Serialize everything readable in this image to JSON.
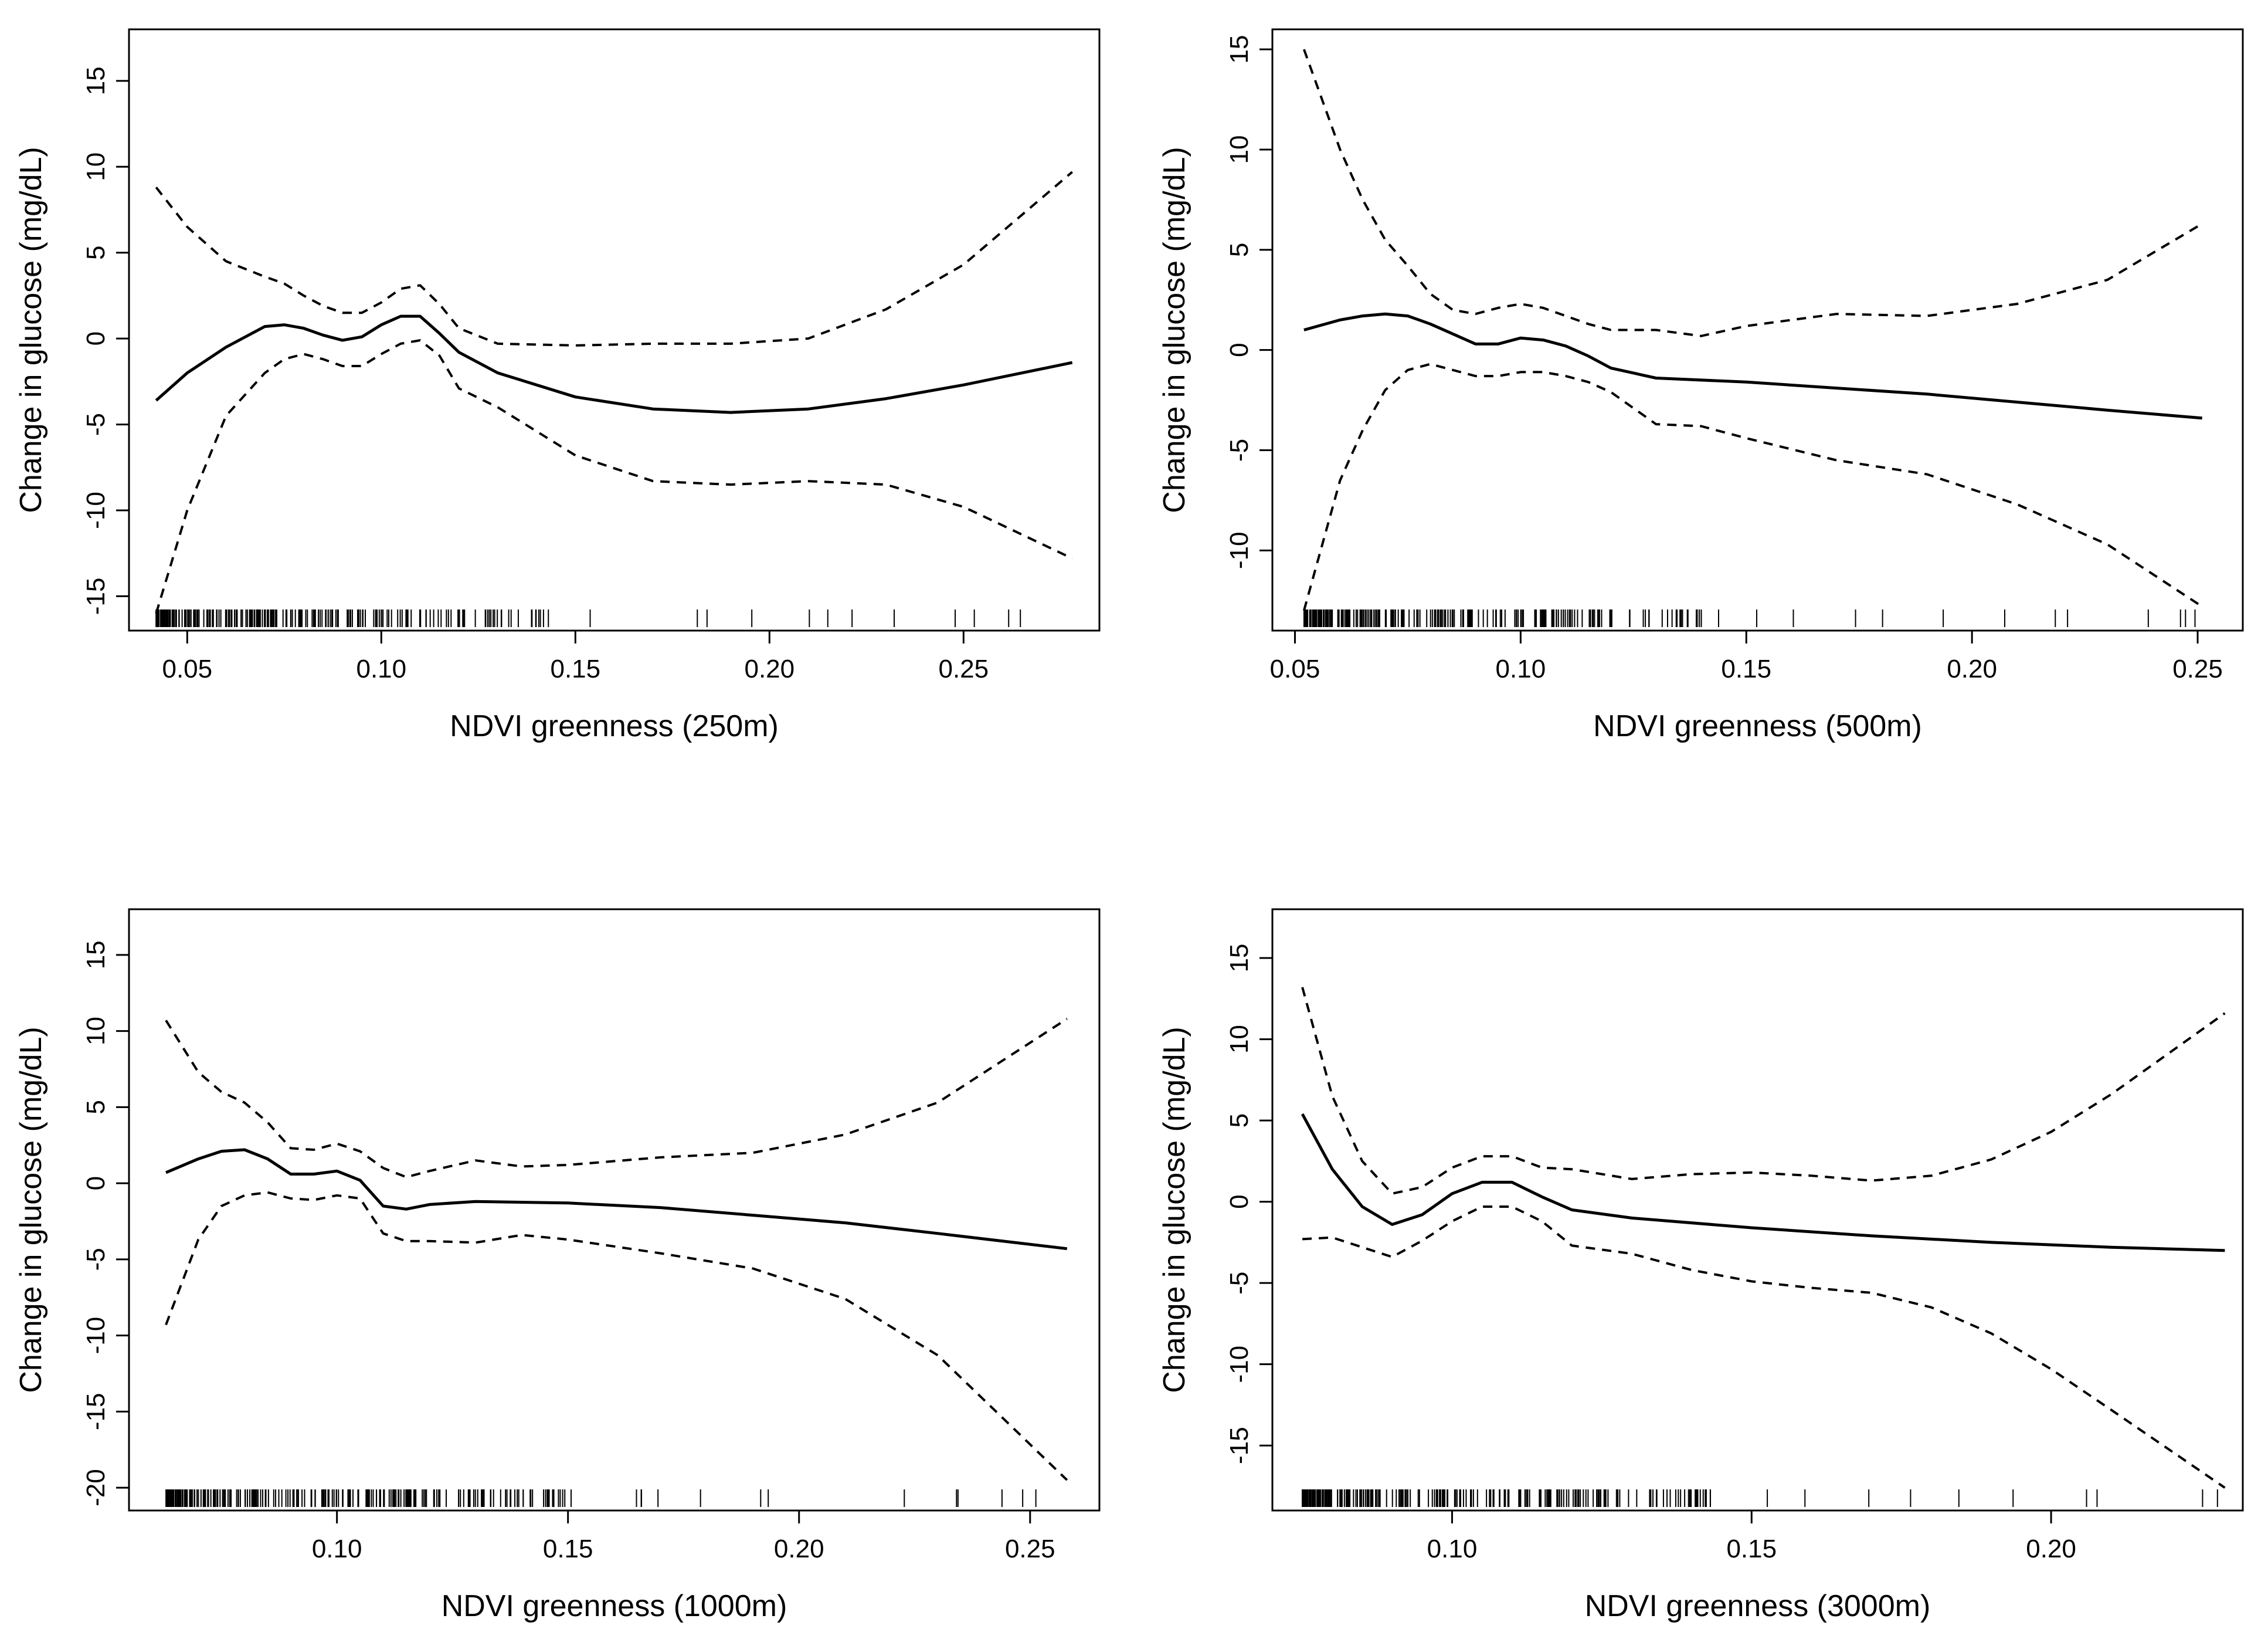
{
  "chart_data": [
    {
      "type": "line",
      "xlabel": "NDVI greenness (250m)",
      "ylabel": "Change in glucose (mg/dL)",
      "xlim": [
        0.035,
        0.285
      ],
      "ylim": [
        -17,
        18
      ],
      "xticks": [
        "0.05",
        "0.10",
        "0.15",
        "0.20",
        "0.25"
      ],
      "yticks": [
        "-15",
        "-10",
        "-5",
        "0",
        "5",
        "10",
        "15"
      ],
      "series": [
        {
          "style": "solid",
          "x": [
            0.042,
            0.05,
            0.06,
            0.07,
            0.075,
            0.08,
            0.085,
            0.09,
            0.095,
            0.1,
            0.105,
            0.11,
            0.115,
            0.12,
            0.13,
            0.15,
            0.17,
            0.19,
            0.21,
            0.23,
            0.25,
            0.278
          ],
          "y": [
            -3.6,
            -2.0,
            -0.5,
            0.7,
            0.8,
            0.6,
            0.2,
            -0.1,
            0.1,
            0.8,
            1.3,
            1.3,
            0.3,
            -0.8,
            -2.0,
            -3.4,
            -4.1,
            -4.3,
            -4.1,
            -3.5,
            -2.7,
            -1.4
          ]
        },
        {
          "style": "dashed",
          "x": [
            0.042,
            0.05,
            0.06,
            0.07,
            0.075,
            0.08,
            0.085,
            0.09,
            0.095,
            0.1,
            0.105,
            0.11,
            0.115,
            0.12,
            0.13,
            0.15,
            0.17,
            0.19,
            0.21,
            0.23,
            0.25,
            0.278
          ],
          "y": [
            8.8,
            6.5,
            4.5,
            3.6,
            3.2,
            2.5,
            1.9,
            1.5,
            1.5,
            2.1,
            2.9,
            3.1,
            2.0,
            0.6,
            -0.3,
            -0.4,
            -0.3,
            -0.3,
            0.0,
            1.7,
            4.3,
            9.7
          ]
        },
        {
          "style": "dashed",
          "x": [
            0.042,
            0.05,
            0.06,
            0.07,
            0.075,
            0.08,
            0.085,
            0.09,
            0.095,
            0.1,
            0.105,
            0.11,
            0.115,
            0.12,
            0.13,
            0.15,
            0.17,
            0.19,
            0.21,
            0.23,
            0.25,
            0.278
          ],
          "y": [
            -16.0,
            -10.0,
            -4.5,
            -2.0,
            -1.2,
            -0.9,
            -1.2,
            -1.6,
            -1.6,
            -0.9,
            -0.3,
            -0.1,
            -1.0,
            -2.9,
            -4.0,
            -6.8,
            -8.3,
            -8.5,
            -8.3,
            -8.5,
            -9.8,
            -12.8
          ]
        }
      ]
    },
    {
      "type": "line",
      "xlabel": "NDVI greenness (500m)",
      "ylabel": "Change in glucose (mg/dL)",
      "xlim": [
        0.045,
        0.26
      ],
      "ylim": [
        -14,
        16
      ],
      "xticks": [
        "0.05",
        "0.10",
        "0.15",
        "0.20",
        "0.25"
      ],
      "yticks": [
        "-10",
        "-5",
        "0",
        "5",
        "10",
        "15"
      ],
      "series": [
        {
          "style": "solid",
          "x": [
            0.052,
            0.06,
            0.065,
            0.07,
            0.075,
            0.08,
            0.085,
            0.09,
            0.095,
            0.1,
            0.105,
            0.11,
            0.115,
            0.12,
            0.13,
            0.15,
            0.17,
            0.19,
            0.21,
            0.23,
            0.251
          ],
          "y": [
            1.0,
            1.5,
            1.7,
            1.8,
            1.7,
            1.3,
            0.8,
            0.3,
            0.3,
            0.6,
            0.5,
            0.2,
            -0.3,
            -0.9,
            -1.4,
            -1.6,
            -1.9,
            -2.2,
            -2.6,
            -3.0,
            -3.4
          ]
        },
        {
          "style": "dashed",
          "x": [
            0.052,
            0.06,
            0.065,
            0.07,
            0.075,
            0.08,
            0.085,
            0.09,
            0.095,
            0.1,
            0.105,
            0.11,
            0.115,
            0.12,
            0.13,
            0.14,
            0.15,
            0.17,
            0.19,
            0.21,
            0.23,
            0.251
          ],
          "y": [
            15.0,
            10.0,
            7.5,
            5.5,
            4.2,
            2.8,
            2.0,
            1.8,
            2.1,
            2.3,
            2.1,
            1.7,
            1.3,
            1.0,
            1.0,
            0.7,
            1.2,
            1.8,
            1.7,
            2.3,
            3.5,
            6.3
          ]
        },
        {
          "style": "dashed",
          "x": [
            0.052,
            0.06,
            0.065,
            0.07,
            0.075,
            0.08,
            0.085,
            0.09,
            0.095,
            0.1,
            0.105,
            0.11,
            0.115,
            0.12,
            0.13,
            0.14,
            0.15,
            0.17,
            0.19,
            0.21,
            0.23,
            0.251
          ],
          "y": [
            -13.0,
            -6.5,
            -4.0,
            -2.0,
            -1.0,
            -0.7,
            -1.0,
            -1.3,
            -1.3,
            -1.1,
            -1.1,
            -1.3,
            -1.6,
            -2.1,
            -3.7,
            -3.8,
            -4.4,
            -5.5,
            -6.2,
            -7.7,
            -9.7,
            -12.8
          ]
        }
      ]
    },
    {
      "type": "line",
      "xlabel": "NDVI greenness (1000m)",
      "ylabel": "Change in glucose (mg/dL)",
      "xlim": [
        0.055,
        0.265
      ],
      "ylim": [
        -21.5,
        18
      ],
      "xticks": [
        "0.10",
        "0.15",
        "0.20",
        "0.25"
      ],
      "yticks": [
        "-20",
        "-15",
        "-10",
        "-5",
        "0",
        "5",
        "10",
        "15"
      ],
      "series": [
        {
          "style": "solid",
          "x": [
            0.063,
            0.07,
            0.075,
            0.08,
            0.085,
            0.09,
            0.095,
            0.1,
            0.105,
            0.11,
            0.115,
            0.12,
            0.13,
            0.15,
            0.17,
            0.19,
            0.21,
            0.23,
            0.258
          ],
          "y": [
            0.7,
            1.6,
            2.1,
            2.2,
            1.6,
            0.6,
            0.6,
            0.8,
            0.2,
            -1.5,
            -1.7,
            -1.4,
            -1.2,
            -1.3,
            -1.6,
            -2.1,
            -2.6,
            -3.3,
            -4.3
          ]
        },
        {
          "style": "dashed",
          "x": [
            0.063,
            0.07,
            0.075,
            0.08,
            0.085,
            0.09,
            0.095,
            0.1,
            0.105,
            0.11,
            0.115,
            0.12,
            0.13,
            0.14,
            0.15,
            0.17,
            0.19,
            0.21,
            0.23,
            0.258
          ],
          "y": [
            10.7,
            7.3,
            6.0,
            5.3,
            4.0,
            2.3,
            2.2,
            2.6,
            2.1,
            1.0,
            0.4,
            0.8,
            1.5,
            1.1,
            1.2,
            1.7,
            2.0,
            3.2,
            5.3,
            10.8
          ]
        },
        {
          "style": "dashed",
          "x": [
            0.063,
            0.07,
            0.075,
            0.08,
            0.085,
            0.09,
            0.095,
            0.1,
            0.105,
            0.11,
            0.115,
            0.12,
            0.13,
            0.14,
            0.15,
            0.17,
            0.19,
            0.21,
            0.23,
            0.258
          ],
          "y": [
            -9.3,
            -3.7,
            -1.5,
            -0.8,
            -0.6,
            -1.0,
            -1.1,
            -0.8,
            -1.0,
            -3.3,
            -3.8,
            -3.8,
            -3.9,
            -3.4,
            -3.7,
            -4.6,
            -5.6,
            -7.6,
            -11.3,
            -19.5
          ]
        }
      ]
    },
    {
      "type": "line",
      "xlabel": "NDVI greenness (3000m)",
      "ylabel": "Change in glucose (mg/dL)",
      "xlim": [
        0.07,
        0.232
      ],
      "ylim": [
        -19,
        18
      ],
      "xticks": [
        "0.10",
        "0.15",
        "0.20"
      ],
      "yticks": [
        "-15",
        "-10",
        "-5",
        "0",
        "5",
        "10",
        "15"
      ],
      "series": [
        {
          "style": "solid",
          "x": [
            0.075,
            0.08,
            0.085,
            0.09,
            0.095,
            0.1,
            0.105,
            0.11,
            0.115,
            0.12,
            0.13,
            0.15,
            0.17,
            0.19,
            0.21,
            0.229
          ],
          "y": [
            5.4,
            2.0,
            -0.3,
            -1.4,
            -0.8,
            0.5,
            1.2,
            1.2,
            0.3,
            -0.5,
            -1.0,
            -1.6,
            -2.1,
            -2.5,
            -2.8,
            -3.0
          ]
        },
        {
          "style": "dashed",
          "x": [
            0.075,
            0.08,
            0.085,
            0.09,
            0.095,
            0.1,
            0.105,
            0.11,
            0.115,
            0.12,
            0.13,
            0.14,
            0.15,
            0.16,
            0.17,
            0.18,
            0.19,
            0.2,
            0.21,
            0.229
          ],
          "y": [
            13.2,
            6.5,
            2.5,
            0.5,
            0.9,
            2.1,
            2.8,
            2.8,
            2.1,
            2.0,
            1.4,
            1.7,
            1.8,
            1.6,
            1.3,
            1.6,
            2.6,
            4.3,
            6.6,
            11.6
          ]
        },
        {
          "style": "dashed",
          "x": [
            0.075,
            0.08,
            0.085,
            0.09,
            0.095,
            0.1,
            0.105,
            0.11,
            0.115,
            0.12,
            0.13,
            0.14,
            0.15,
            0.16,
            0.17,
            0.18,
            0.19,
            0.2,
            0.21,
            0.229
          ],
          "y": [
            -2.3,
            -2.2,
            -2.8,
            -3.4,
            -2.4,
            -1.2,
            -0.3,
            -0.3,
            -1.2,
            -2.7,
            -3.2,
            -4.2,
            -4.9,
            -5.3,
            -5.6,
            -6.5,
            -8.1,
            -10.3,
            -12.8,
            -17.6
          ]
        }
      ]
    }
  ]
}
